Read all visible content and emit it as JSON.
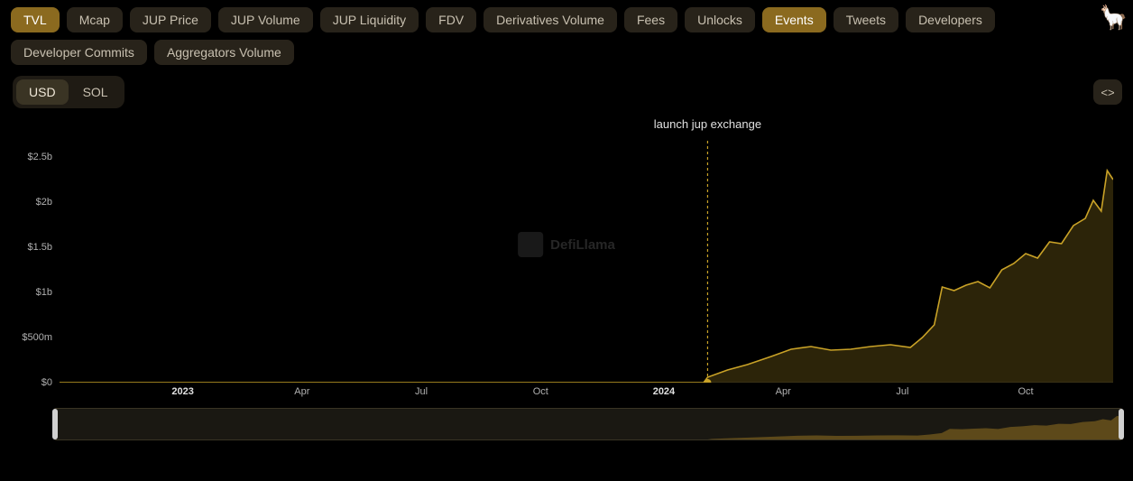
{
  "tabs": {
    "row1": [
      {
        "label": "TVL",
        "active": true
      },
      {
        "label": "Mcap",
        "active": false
      },
      {
        "label": "JUP Price",
        "active": false
      },
      {
        "label": "JUP Volume",
        "active": false
      },
      {
        "label": "JUP Liquidity",
        "active": false
      },
      {
        "label": "FDV",
        "active": false
      },
      {
        "label": "Derivatives Volume",
        "active": false
      },
      {
        "label": "Fees",
        "active": false
      },
      {
        "label": "Unlocks",
        "active": false
      },
      {
        "label": "Events",
        "active": true
      },
      {
        "label": "Tweets",
        "active": false
      },
      {
        "label": "Developers",
        "active": false
      }
    ],
    "row2": [
      {
        "label": "Developer Commits",
        "active": false
      },
      {
        "label": "Aggregators Volume",
        "active": false
      }
    ]
  },
  "currency": {
    "options": [
      {
        "label": "USD",
        "active": true
      },
      {
        "label": "SOL",
        "active": false
      }
    ]
  },
  "embed_button_glyph": "<>",
  "mascot_glyph": "🦙",
  "watermark": {
    "text": "DefiLlama"
  },
  "chart": {
    "type": "area",
    "background_color": "#000000",
    "yaxis": {
      "min": 0,
      "max": 2700000000,
      "ticks": [
        {
          "v": 0,
          "label": "$0"
        },
        {
          "v": 500000000,
          "label": "$500m"
        },
        {
          "v": 1000000000,
          "label": "$1b"
        },
        {
          "v": 1500000000,
          "label": "$1.5b"
        },
        {
          "v": 2000000000,
          "label": "$2b"
        },
        {
          "v": 2500000000,
          "label": "$2.5b"
        }
      ],
      "label_color": "#b0b0b0",
      "label_fontsize": 11
    },
    "xaxis": {
      "ticks": [
        {
          "t": 3.1,
          "label": "2023",
          "bold": true
        },
        {
          "t": 6.1,
          "label": "Apr"
        },
        {
          "t": 9.1,
          "label": "Jul"
        },
        {
          "t": 12.1,
          "label": "Oct"
        },
        {
          "t": 15.2,
          "label": "2024",
          "bold": true
        },
        {
          "t": 18.2,
          "label": "Apr"
        },
        {
          "t": 21.2,
          "label": "Jul"
        },
        {
          "t": 24.3,
          "label": "Oct"
        }
      ],
      "min": 0,
      "max": 26.5
    },
    "event": {
      "label": "launch jup exchange",
      "t": 16.3,
      "line_color": "#c9a227",
      "dot_color": "#c9a227"
    },
    "series": {
      "stroke_color": "#c9a227",
      "stroke_width": 1.6,
      "fill_color": "rgba(201,162,39,0.22)",
      "points": [
        {
          "t": 0.0,
          "v": 0
        },
        {
          "t": 16.2,
          "v": 0
        },
        {
          "t": 16.3,
          "v": 60000000
        },
        {
          "t": 16.8,
          "v": 140000000
        },
        {
          "t": 17.3,
          "v": 200000000
        },
        {
          "t": 17.9,
          "v": 290000000
        },
        {
          "t": 18.4,
          "v": 370000000
        },
        {
          "t": 18.9,
          "v": 400000000
        },
        {
          "t": 19.4,
          "v": 360000000
        },
        {
          "t": 19.9,
          "v": 370000000
        },
        {
          "t": 20.4,
          "v": 400000000
        },
        {
          "t": 20.9,
          "v": 420000000
        },
        {
          "t": 21.4,
          "v": 390000000
        },
        {
          "t": 21.7,
          "v": 500000000
        },
        {
          "t": 22.0,
          "v": 640000000
        },
        {
          "t": 22.2,
          "v": 1060000000
        },
        {
          "t": 22.5,
          "v": 1020000000
        },
        {
          "t": 22.8,
          "v": 1080000000
        },
        {
          "t": 23.1,
          "v": 1120000000
        },
        {
          "t": 23.4,
          "v": 1050000000
        },
        {
          "t": 23.7,
          "v": 1250000000
        },
        {
          "t": 24.0,
          "v": 1320000000
        },
        {
          "t": 24.3,
          "v": 1430000000
        },
        {
          "t": 24.6,
          "v": 1380000000
        },
        {
          "t": 24.9,
          "v": 1560000000
        },
        {
          "t": 25.2,
          "v": 1540000000
        },
        {
          "t": 25.5,
          "v": 1740000000
        },
        {
          "t": 25.8,
          "v": 1820000000
        },
        {
          "t": 26.0,
          "v": 2020000000
        },
        {
          "t": 26.2,
          "v": 1900000000
        },
        {
          "t": 26.35,
          "v": 2350000000
        },
        {
          "t": 26.5,
          "v": 2250000000
        }
      ]
    }
  },
  "mini_chart": {
    "background": "#1a1812",
    "border_color": "#3a3424",
    "handle_color": "#d0d0d0",
    "series_color": "#8b6a1f"
  }
}
